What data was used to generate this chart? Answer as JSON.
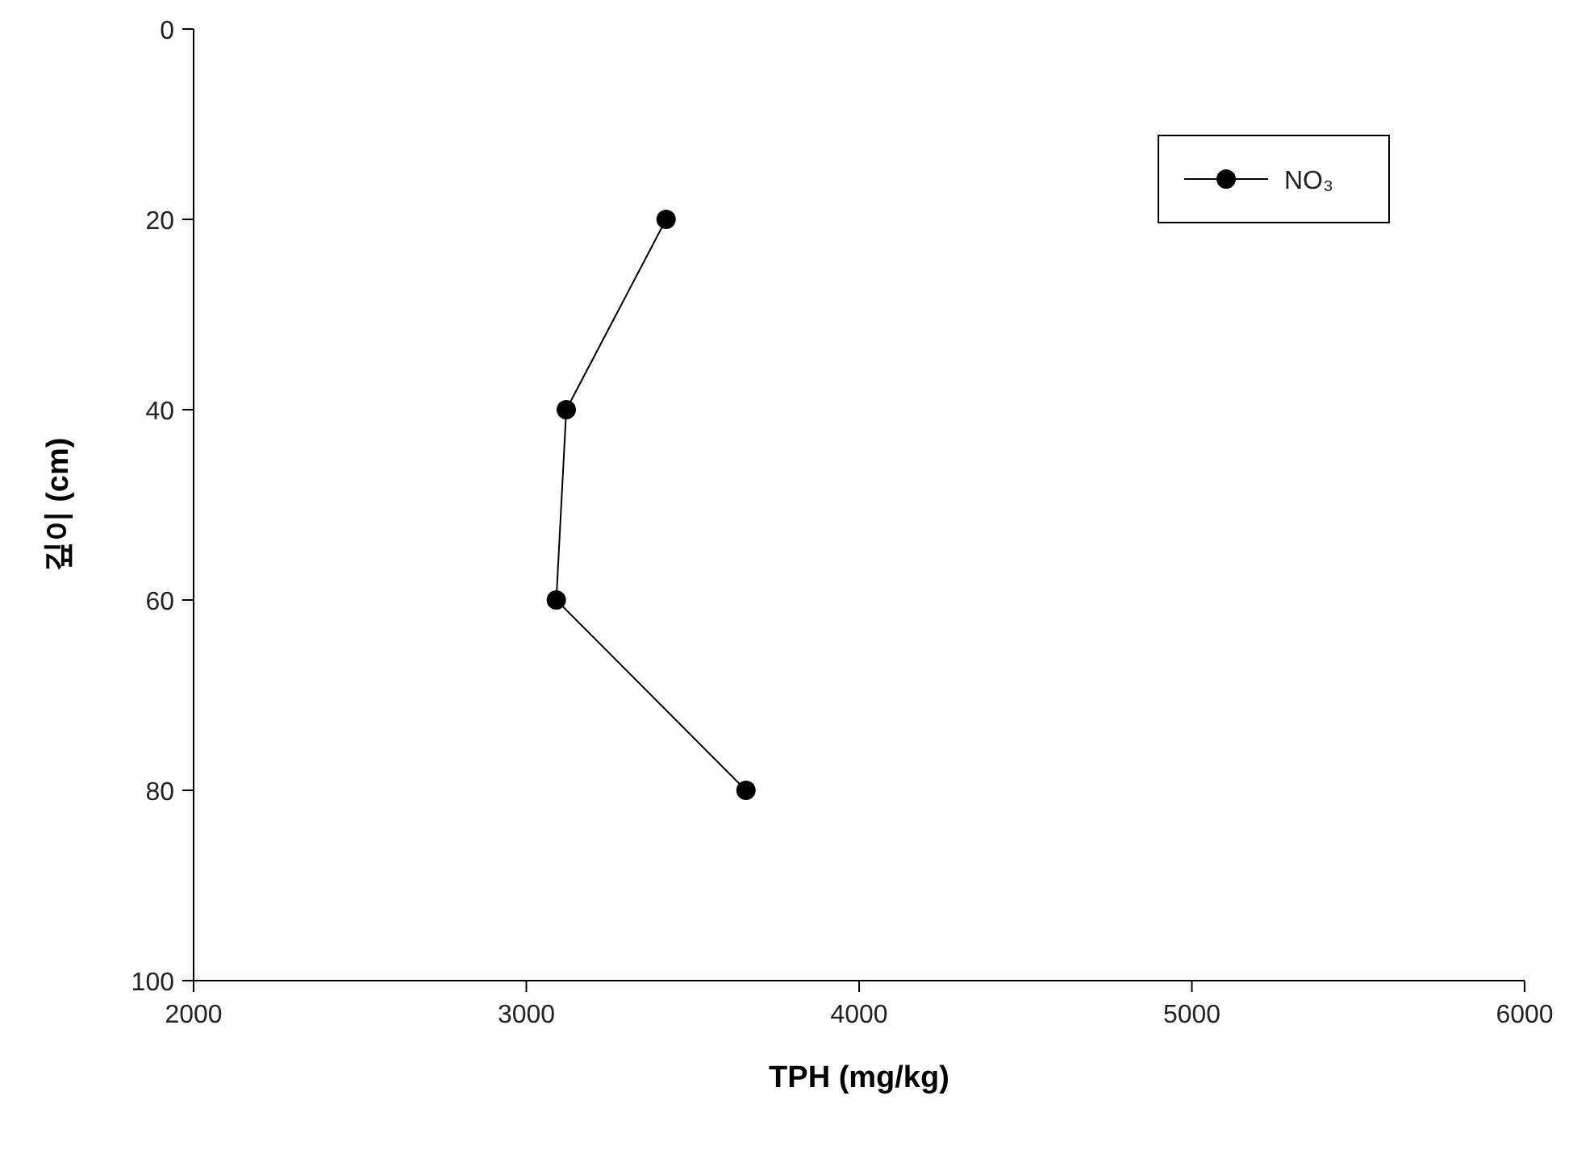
{
  "chart_data": {
    "type": "line",
    "xlabel": "TPH (mg/kg)",
    "ylabel": "깊이 (cm)",
    "x": [
      3420,
      3120,
      3090,
      3660
    ],
    "series": [
      {
        "name": "NO₃",
        "color": "#000000",
        "values": [
          20,
          40,
          60,
          80
        ]
      }
    ],
    "xlim": [
      2000,
      6000
    ],
    "xticks": [
      2000,
      3000,
      4000,
      5000,
      6000
    ],
    "ylim": [
      100,
      0
    ],
    "yticks": [
      0,
      20,
      40,
      60,
      80,
      100
    ],
    "marker": "circle",
    "line_style": "solid",
    "legend": "top right",
    "grid": false
  }
}
